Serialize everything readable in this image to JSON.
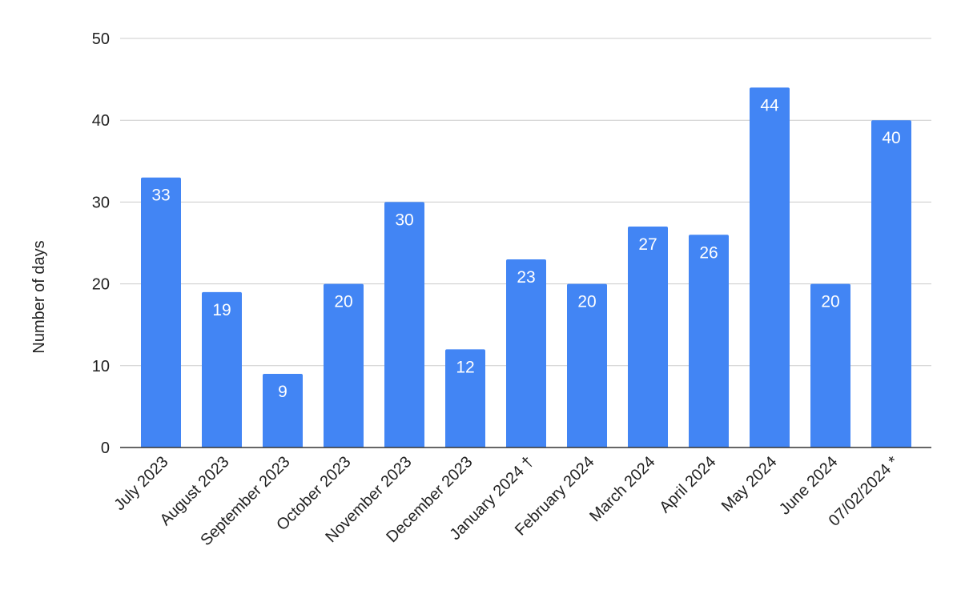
{
  "chart_data": {
    "type": "bar",
    "title": "",
    "xlabel": "",
    "ylabel": "Number of days",
    "ylim": [
      0,
      50
    ],
    "yticks": [
      0,
      10,
      20,
      30,
      40,
      50
    ],
    "grid": true,
    "legend": "none",
    "bar_color": "#4285F4",
    "categories": [
      "July 2023",
      "August 2023",
      "September 2023",
      "October 2023",
      "November 2023",
      "December 2023",
      "January 2024 †",
      "February 2024",
      "March 2024",
      "April 2024",
      "May 2024",
      "June 2024",
      "07/02/2024 *"
    ],
    "values": [
      33,
      19,
      9,
      20,
      30,
      12,
      23,
      20,
      27,
      26,
      44,
      20,
      40
    ]
  }
}
